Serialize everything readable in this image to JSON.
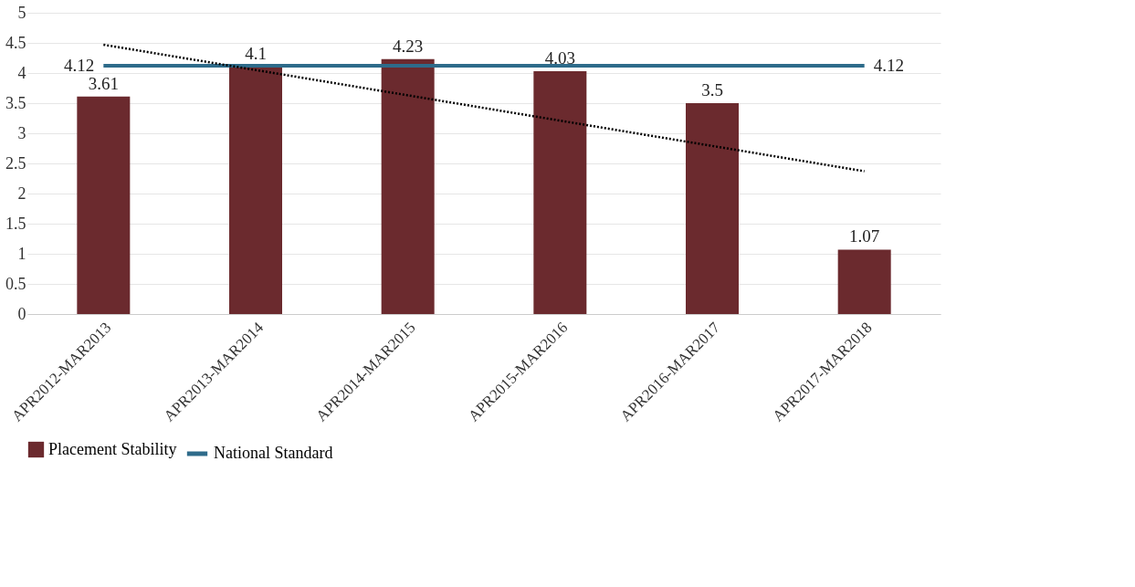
{
  "chart_data": {
    "type": "bar",
    "categories": [
      "APR2012-MAR2013",
      "APR2013-MAR2014",
      "APR2014-MAR2015",
      "APR2015-MAR2016",
      "APR2016-MAR2017",
      "APR2017-MAR2018"
    ],
    "ylim": [
      0,
      5
    ],
    "yticks": [
      0,
      0.5,
      1,
      1.5,
      2,
      2.5,
      3,
      3.5,
      4,
      4.5,
      5
    ],
    "grid": "y",
    "legend": "bottom",
    "series": [
      {
        "name": "Placement Stability",
        "color": "#6b2a2e",
        "values": [
          3.61,
          4.1,
          4.23,
          4.03,
          3.5,
          1.07
        ],
        "value_labels": [
          "3.61",
          "4.1",
          "4.23",
          "4.03",
          "3.5",
          "1.07"
        ]
      },
      {
        "name": "National Standard",
        "type": "line",
        "color": "#2e6b8a",
        "values": [
          4.12,
          4.12,
          4.12,
          4.12,
          4.12,
          4.12
        ],
        "value_labels": [
          "4.12",
          null,
          null,
          null,
          null,
          "4.12"
        ],
        "line_style": "solid"
      },
      {
        "type": "line",
        "color": "#000000",
        "values": [
          4.47,
          4.05,
          3.63,
          3.21,
          2.79,
          2.37
        ],
        "line_style": "dotted"
      }
    ]
  }
}
